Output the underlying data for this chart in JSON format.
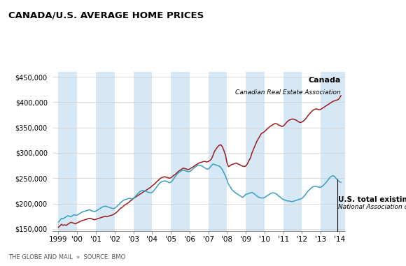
{
  "title": "CANADA/U.S. AVERAGE HOME PRICES",
  "footer": "THE GLOBE AND MAIL  »  SOURCE: BMO",
  "canada_label": "Canada",
  "canada_sublabel": "Canadian Real Estate Association",
  "us_label": "U.S. total existing homes",
  "us_sublabel": "National Association of Realtors",
  "canada_color": "#9B1C1C",
  "us_color": "#3A9DC4",
  "background_color": "#FFFFFF",
  "stripe_color": "#D6E8F5",
  "ylim": [
    145000,
    460000
  ],
  "yticks": [
    150000,
    200000,
    250000,
    300000,
    350000,
    400000,
    450000
  ],
  "xlim": [
    1998.7,
    2014.3
  ],
  "xlabel_years": [
    "1999",
    "'00",
    "'01",
    "'02",
    "'03",
    "'04",
    "'05",
    "'06",
    "'07",
    "'08",
    "'09",
    "'10",
    "'11",
    "'12",
    "'13",
    "'14"
  ],
  "stripe_ranges": [
    [
      1999.0,
      2000.0
    ],
    [
      2001.0,
      2002.0
    ],
    [
      2003.0,
      2004.0
    ],
    [
      2005.0,
      2006.0
    ],
    [
      2007.0,
      2008.0
    ],
    [
      2009.0,
      2010.0
    ],
    [
      2011.0,
      2012.0
    ],
    [
      2013.0,
      2014.3
    ]
  ],
  "canada_x": [
    1999.0,
    1999.08,
    1999.17,
    1999.25,
    1999.33,
    1999.42,
    1999.5,
    1999.58,
    1999.67,
    1999.75,
    1999.83,
    1999.92,
    2000.0,
    2000.08,
    2000.17,
    2000.25,
    2000.33,
    2000.42,
    2000.5,
    2000.58,
    2000.67,
    2000.75,
    2000.83,
    2000.92,
    2001.0,
    2001.08,
    2001.17,
    2001.25,
    2001.33,
    2001.42,
    2001.5,
    2001.58,
    2001.67,
    2001.75,
    2001.83,
    2001.92,
    2002.0,
    2002.08,
    2002.17,
    2002.25,
    2002.33,
    2002.42,
    2002.5,
    2002.58,
    2002.67,
    2002.75,
    2002.83,
    2002.92,
    2003.0,
    2003.08,
    2003.17,
    2003.25,
    2003.33,
    2003.42,
    2003.5,
    2003.58,
    2003.67,
    2003.75,
    2003.83,
    2003.92,
    2004.0,
    2004.08,
    2004.17,
    2004.25,
    2004.33,
    2004.42,
    2004.5,
    2004.58,
    2004.67,
    2004.75,
    2004.83,
    2004.92,
    2005.0,
    2005.08,
    2005.17,
    2005.25,
    2005.33,
    2005.42,
    2005.5,
    2005.58,
    2005.67,
    2005.75,
    2005.83,
    2005.92,
    2006.0,
    2006.08,
    2006.17,
    2006.25,
    2006.33,
    2006.42,
    2006.5,
    2006.58,
    2006.67,
    2006.75,
    2006.83,
    2006.92,
    2007.0,
    2007.08,
    2007.17,
    2007.25,
    2007.33,
    2007.42,
    2007.5,
    2007.58,
    2007.67,
    2007.75,
    2007.83,
    2007.92,
    2008.0,
    2008.08,
    2008.17,
    2008.25,
    2008.33,
    2008.42,
    2008.5,
    2008.58,
    2008.67,
    2008.75,
    2008.83,
    2008.92,
    2009.0,
    2009.08,
    2009.17,
    2009.25,
    2009.33,
    2009.42,
    2009.5,
    2009.58,
    2009.67,
    2009.75,
    2009.83,
    2009.92,
    2010.0,
    2010.08,
    2010.17,
    2010.25,
    2010.33,
    2010.42,
    2010.5,
    2010.58,
    2010.67,
    2010.75,
    2010.83,
    2010.92,
    2011.0,
    2011.08,
    2011.17,
    2011.25,
    2011.33,
    2011.42,
    2011.5,
    2011.58,
    2011.67,
    2011.75,
    2011.83,
    2011.92,
    2012.0,
    2012.08,
    2012.17,
    2012.25,
    2012.33,
    2012.42,
    2012.5,
    2012.58,
    2012.67,
    2012.75,
    2012.83,
    2012.92,
    2013.0,
    2013.08,
    2013.17,
    2013.25,
    2013.33,
    2013.42,
    2013.5,
    2013.58,
    2013.67,
    2013.75,
    2013.83,
    2013.92,
    2014.0,
    2014.08
  ],
  "canada_y": [
    153000,
    156000,
    159000,
    157000,
    158000,
    157000,
    159000,
    161000,
    163000,
    162000,
    161000,
    160000,
    162000,
    163000,
    165000,
    166000,
    167000,
    168000,
    169000,
    170000,
    171000,
    170000,
    169000,
    168000,
    169000,
    170000,
    171000,
    172000,
    173000,
    174000,
    175000,
    174000,
    175000,
    176000,
    177000,
    178000,
    180000,
    182000,
    185000,
    188000,
    191000,
    193000,
    196000,
    198000,
    200000,
    202000,
    205000,
    207000,
    210000,
    212000,
    214000,
    216000,
    218000,
    220000,
    222000,
    224000,
    226000,
    228000,
    230000,
    232000,
    235000,
    237000,
    240000,
    243000,
    246000,
    249000,
    251000,
    252000,
    253000,
    252000,
    251000,
    250000,
    251000,
    253000,
    256000,
    258000,
    261000,
    264000,
    266000,
    268000,
    270000,
    269000,
    268000,
    267000,
    268000,
    270000,
    272000,
    274000,
    276000,
    278000,
    280000,
    281000,
    282000,
    283000,
    283000,
    282000,
    283000,
    285000,
    288000,
    295000,
    303000,
    308000,
    312000,
    315000,
    316000,
    312000,
    305000,
    295000,
    280000,
    273000,
    275000,
    277000,
    278000,
    279000,
    280000,
    278000,
    277000,
    275000,
    274000,
    273000,
    274000,
    278000,
    285000,
    290000,
    300000,
    308000,
    315000,
    322000,
    328000,
    333000,
    338000,
    340000,
    342000,
    345000,
    348000,
    351000,
    353000,
    355000,
    357000,
    358000,
    357000,
    355000,
    354000,
    352000,
    353000,
    356000,
    360000,
    363000,
    365000,
    366000,
    367000,
    366000,
    365000,
    363000,
    361000,
    360000,
    361000,
    363000,
    366000,
    370000,
    374000,
    378000,
    381000,
    384000,
    386000,
    387000,
    386000,
    385000,
    386000,
    388000,
    390000,
    392000,
    394000,
    396000,
    398000,
    400000,
    402000,
    403000,
    404000,
    405000,
    408000,
    413000
  ],
  "us_x": [
    1999.0,
    1999.08,
    1999.17,
    1999.25,
    1999.33,
    1999.42,
    1999.5,
    1999.58,
    1999.67,
    1999.75,
    1999.83,
    1999.92,
    2000.0,
    2000.08,
    2000.17,
    2000.25,
    2000.33,
    2000.42,
    2000.5,
    2000.58,
    2000.67,
    2000.75,
    2000.83,
    2000.92,
    2001.0,
    2001.08,
    2001.17,
    2001.25,
    2001.33,
    2001.42,
    2001.5,
    2001.58,
    2001.67,
    2001.75,
    2001.83,
    2001.92,
    2002.0,
    2002.08,
    2002.17,
    2002.25,
    2002.33,
    2002.42,
    2002.5,
    2002.58,
    2002.67,
    2002.75,
    2002.83,
    2002.92,
    2003.0,
    2003.08,
    2003.17,
    2003.25,
    2003.33,
    2003.42,
    2003.5,
    2003.58,
    2003.67,
    2003.75,
    2003.83,
    2003.92,
    2004.0,
    2004.08,
    2004.17,
    2004.25,
    2004.33,
    2004.42,
    2004.5,
    2004.58,
    2004.67,
    2004.75,
    2004.83,
    2004.92,
    2005.0,
    2005.08,
    2005.17,
    2005.25,
    2005.33,
    2005.42,
    2005.5,
    2005.58,
    2005.67,
    2005.75,
    2005.83,
    2005.92,
    2006.0,
    2006.08,
    2006.17,
    2006.25,
    2006.33,
    2006.42,
    2006.5,
    2006.58,
    2006.67,
    2006.75,
    2006.83,
    2006.92,
    2007.0,
    2007.08,
    2007.17,
    2007.25,
    2007.33,
    2007.42,
    2007.5,
    2007.58,
    2007.67,
    2007.75,
    2007.83,
    2007.92,
    2008.0,
    2008.08,
    2008.17,
    2008.25,
    2008.33,
    2008.42,
    2008.5,
    2008.58,
    2008.67,
    2008.75,
    2008.83,
    2008.92,
    2009.0,
    2009.08,
    2009.17,
    2009.25,
    2009.33,
    2009.42,
    2009.5,
    2009.58,
    2009.67,
    2009.75,
    2009.83,
    2009.92,
    2010.0,
    2010.08,
    2010.17,
    2010.25,
    2010.33,
    2010.42,
    2010.5,
    2010.58,
    2010.67,
    2010.75,
    2010.83,
    2010.92,
    2011.0,
    2011.08,
    2011.17,
    2011.25,
    2011.33,
    2011.42,
    2011.5,
    2011.58,
    2011.67,
    2011.75,
    2011.83,
    2011.92,
    2012.0,
    2012.08,
    2012.17,
    2012.25,
    2012.33,
    2012.42,
    2012.5,
    2012.58,
    2012.67,
    2012.75,
    2012.83,
    2012.92,
    2013.0,
    2013.08,
    2013.17,
    2013.25,
    2013.33,
    2013.42,
    2013.5,
    2013.58,
    2013.67,
    2013.75,
    2013.83,
    2013.92,
    2014.0,
    2014.08
  ],
  "us_y": [
    163000,
    167000,
    171000,
    170000,
    172000,
    174000,
    176000,
    175000,
    174000,
    176000,
    178000,
    177000,
    177000,
    179000,
    181000,
    183000,
    184000,
    185000,
    186000,
    187000,
    188000,
    186000,
    185000,
    184000,
    185000,
    187000,
    189000,
    191000,
    193000,
    194000,
    195000,
    194000,
    193000,
    192000,
    191000,
    190000,
    191000,
    193000,
    196000,
    199000,
    202000,
    205000,
    207000,
    208000,
    209000,
    210000,
    210000,
    209000,
    210000,
    213000,
    217000,
    220000,
    223000,
    225000,
    226000,
    225000,
    224000,
    223000,
    222000,
    221000,
    222000,
    225000,
    229000,
    233000,
    237000,
    241000,
    243000,
    244000,
    245000,
    244000,
    243000,
    241000,
    242000,
    245000,
    250000,
    254000,
    258000,
    261000,
    263000,
    265000,
    266000,
    265000,
    264000,
    263000,
    263000,
    265000,
    268000,
    271000,
    273000,
    275000,
    276000,
    275000,
    274000,
    272000,
    270000,
    268000,
    268000,
    271000,
    275000,
    278000,
    277000,
    276000,
    275000,
    274000,
    271000,
    267000,
    261000,
    254000,
    246000,
    238000,
    233000,
    228000,
    225000,
    222000,
    220000,
    218000,
    216000,
    214000,
    212000,
    215000,
    218000,
    219000,
    220000,
    221000,
    222000,
    220000,
    218000,
    215000,
    213000,
    212000,
    211000,
    211000,
    212000,
    214000,
    216000,
    218000,
    220000,
    221000,
    221000,
    220000,
    218000,
    215000,
    213000,
    210000,
    208000,
    207000,
    206000,
    205000,
    205000,
    204000,
    204000,
    205000,
    206000,
    207000,
    208000,
    209000,
    210000,
    213000,
    217000,
    221000,
    225000,
    228000,
    231000,
    233000,
    234000,
    234000,
    233000,
    232000,
    232000,
    234000,
    237000,
    240000,
    244000,
    248000,
    252000,
    254000,
    255000,
    253000,
    249000,
    246000,
    243000,
    242000
  ]
}
